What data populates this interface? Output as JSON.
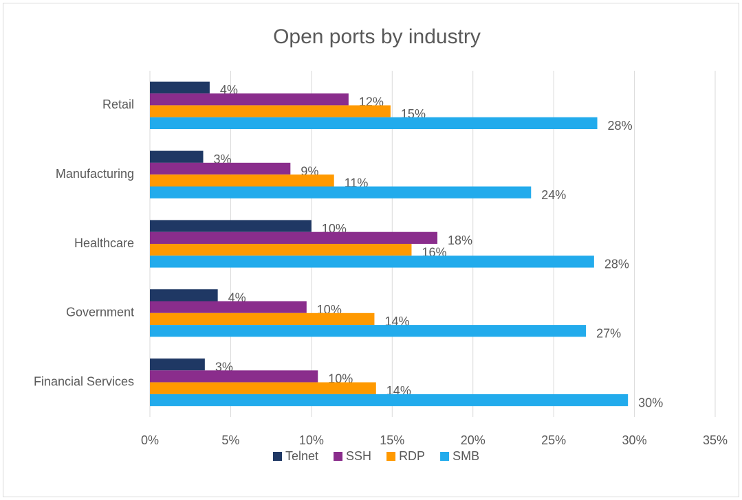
{
  "chart_data": {
    "type": "bar",
    "orientation": "horizontal",
    "title": "Open ports by industry",
    "categories": [
      "Retail",
      "Manufacturing",
      "Healthcare",
      "Government",
      "Financial Services"
    ],
    "series": [
      {
        "name": "Telnet",
        "color": "#1f3864",
        "values": [
          3.7,
          3.3,
          10.0,
          4.2,
          3.4
        ],
        "value_labels": [
          "4%",
          "3%",
          "10%",
          "4%",
          "3%"
        ]
      },
      {
        "name": "SSH",
        "color": "#8a2d8c",
        "values": [
          12.3,
          8.7,
          17.8,
          9.7,
          10.4
        ],
        "value_labels": [
          "12%",
          "9%",
          "18%",
          "10%",
          "10%"
        ]
      },
      {
        "name": "RDP",
        "color": "#ff9900",
        "values": [
          14.9,
          11.4,
          16.2,
          13.9,
          14.0
        ],
        "value_labels": [
          "15%",
          "11%",
          "16%",
          "14%",
          "14%"
        ]
      },
      {
        "name": "SMB",
        "color": "#22abec",
        "values": [
          27.7,
          23.6,
          27.5,
          27.0,
          29.6
        ],
        "value_labels": [
          "28%",
          "24%",
          "28%",
          "27%",
          "30%"
        ]
      }
    ],
    "xlim": [
      0,
      35
    ],
    "xticks": [
      {
        "value": 0,
        "label": "0%"
      },
      {
        "value": 5,
        "label": "5%"
      },
      {
        "value": 10,
        "label": "10%"
      },
      {
        "value": 15,
        "label": "15%"
      },
      {
        "value": 20,
        "label": "20%"
      },
      {
        "value": 25,
        "label": "25%"
      },
      {
        "value": 30,
        "label": "30%"
      },
      {
        "value": 35,
        "label": "35%"
      }
    ],
    "grid": true,
    "legend": "bottom"
  }
}
